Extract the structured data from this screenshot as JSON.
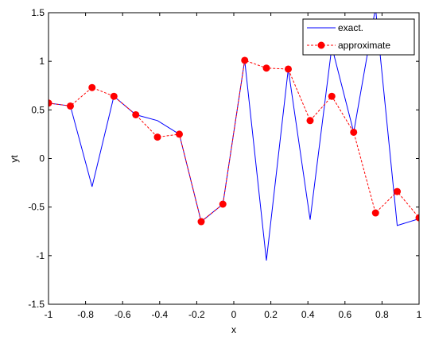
{
  "chart_data": {
    "type": "line",
    "title": "",
    "xlabel": "x",
    "ylabel": "yt",
    "xlim": [
      -1,
      1
    ],
    "ylim": [
      -1.5,
      1.5
    ],
    "xticks": [
      -1,
      -0.8,
      -0.6,
      -0.4,
      -0.2,
      0,
      0.2,
      0.4,
      0.6,
      0.8,
      1
    ],
    "xtick_labels": [
      "-1",
      "-0.8",
      "-0.6",
      "-0.4",
      "-0.2",
      "0",
      "0.2",
      "0.4",
      "0.6",
      "0.8",
      "1"
    ],
    "yticks": [
      -1.5,
      -1,
      -0.5,
      0,
      0.5,
      1,
      1.5
    ],
    "ytick_labels": [
      "-1.5",
      "-1",
      "-0.5",
      "0",
      "0.5",
      "1",
      "1.5"
    ],
    "grid": false,
    "legend_position": "top-right",
    "series": [
      {
        "name": "exact.",
        "color": "#0000ff",
        "style": "solid",
        "marker": "none",
        "x": [
          -1,
          -0.882,
          -0.765,
          -0.647,
          -0.529,
          -0.412,
          -0.294,
          -0.176,
          -0.059,
          0.059,
          0.176,
          0.294,
          0.412,
          0.529,
          0.647,
          0.765,
          0.882,
          1
        ],
        "y": [
          0.57,
          0.54,
          -0.29,
          0.64,
          0.45,
          0.39,
          0.25,
          -0.65,
          -0.47,
          1.01,
          -1.05,
          0.92,
          -0.63,
          1.15,
          0.27,
          1.55,
          -0.69,
          -0.62
        ]
      },
      {
        "name": "approximate",
        "color": "#ff0000",
        "style": "dashed",
        "marker": "circle",
        "x": [
          -1,
          -0.882,
          -0.765,
          -0.647,
          -0.529,
          -0.412,
          -0.294,
          -0.176,
          -0.059,
          0.059,
          0.176,
          0.294,
          0.412,
          0.529,
          0.647,
          0.765,
          0.882,
          1
        ],
        "y": [
          0.57,
          0.54,
          0.73,
          0.64,
          0.45,
          0.22,
          0.25,
          -0.65,
          -0.47,
          1.01,
          0.93,
          0.92,
          0.39,
          0.64,
          0.27,
          -0.56,
          -0.34,
          -0.61
        ]
      }
    ]
  }
}
